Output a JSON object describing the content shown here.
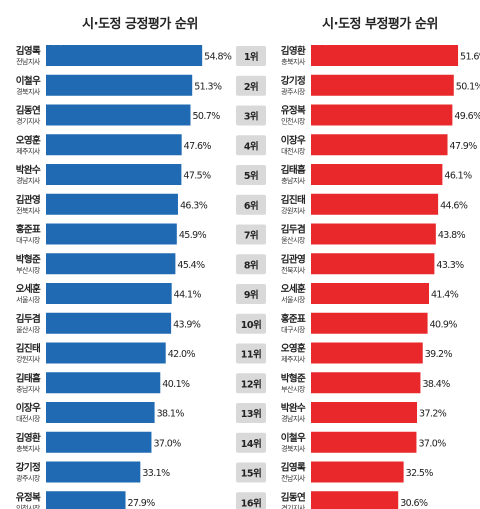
{
  "chart_data": [
    {
      "type": "bar",
      "title": "시·도정 긍정평가 순위",
      "series_label": "긍정",
      "color": "#1f6ab3",
      "items": [
        {
          "name": "김영록",
          "role": "전남지사",
          "value": 54.8,
          "label": "54.8%"
        },
        {
          "name": "이철우",
          "role": "경북지사",
          "value": 51.3,
          "label": "51.3%"
        },
        {
          "name": "김동연",
          "role": "경기지사",
          "value": 50.7,
          "label": "50.7%"
        },
        {
          "name": "오영훈",
          "role": "제주지사",
          "value": 47.6,
          "label": "47.6%"
        },
        {
          "name": "박완수",
          "role": "경남지사",
          "value": 47.5,
          "label": "47.5%"
        },
        {
          "name": "김관영",
          "role": "전북지사",
          "value": 46.3,
          "label": "46.3%"
        },
        {
          "name": "홍준표",
          "role": "대구시장",
          "value": 45.9,
          "label": "45.9%"
        },
        {
          "name": "박형준",
          "role": "부산시장",
          "value": 45.4,
          "label": "45.4%"
        },
        {
          "name": "오세훈",
          "role": "서울시장",
          "value": 44.1,
          "label": "44.1%"
        },
        {
          "name": "김두겸",
          "role": "울산시장",
          "value": 43.9,
          "label": "43.9%"
        },
        {
          "name": "김진태",
          "role": "강원지사",
          "value": 42.0,
          "label": "42.0%"
        },
        {
          "name": "김태흠",
          "role": "충남지사",
          "value": 40.1,
          "label": "40.1%"
        },
        {
          "name": "이장우",
          "role": "대전시장",
          "value": 38.1,
          "label": "38.1%"
        },
        {
          "name": "김영환",
          "role": "충북지사",
          "value": 37.0,
          "label": "37.0%"
        },
        {
          "name": "강기정",
          "role": "광주시장",
          "value": 33.1,
          "label": "33.1%"
        },
        {
          "name": "유정복",
          "role": "인천시장",
          "value": 27.9,
          "label": "27.9%"
        }
      ]
    },
    {
      "type": "bar",
      "title": "시·도정 부정평가 순위",
      "series_label": "부정",
      "color": "#e8282b",
      "items": [
        {
          "name": "김영환",
          "role": "충북지사",
          "value": 51.6,
          "label": "51.6%"
        },
        {
          "name": "강기정",
          "role": "광주시장",
          "value": 50.1,
          "label": "50.1%"
        },
        {
          "name": "유정복",
          "role": "인천시장",
          "value": 49.6,
          "label": "49.6%"
        },
        {
          "name": "이장우",
          "role": "대전시장",
          "value": 47.9,
          "label": "47.9%"
        },
        {
          "name": "김태흠",
          "role": "충남지사",
          "value": 46.1,
          "label": "46.1%"
        },
        {
          "name": "김진태",
          "role": "강원지사",
          "value": 44.6,
          "label": "44.6%"
        },
        {
          "name": "김두겸",
          "role": "울산시장",
          "value": 43.8,
          "label": "43.8%"
        },
        {
          "name": "김관영",
          "role": "전북지사",
          "value": 43.3,
          "label": "43.3%"
        },
        {
          "name": "오세훈",
          "role": "서울시장",
          "value": 41.4,
          "label": "41.4%"
        },
        {
          "name": "홍준표",
          "role": "대구시장",
          "value": 40.9,
          "label": "40.9%"
        },
        {
          "name": "오영훈",
          "role": "제주지사",
          "value": 39.2,
          "label": "39.2%"
        },
        {
          "name": "박형준",
          "role": "부산시장",
          "value": 38.4,
          "label": "38.4%"
        },
        {
          "name": "박완수",
          "role": "경남지사",
          "value": 37.2,
          "label": "37.2%"
        },
        {
          "name": "이철우",
          "role": "경북지사",
          "value": 37.0,
          "label": "37.0%"
        },
        {
          "name": "김영록",
          "role": "전남지사",
          "value": 32.5,
          "label": "32.5%"
        },
        {
          "name": "김동연",
          "role": "경기지사",
          "value": 30.6,
          "label": "30.6%"
        }
      ]
    }
  ],
  "ranks": [
    "1위",
    "2위",
    "3위",
    "4위",
    "5위",
    "6위",
    "7위",
    "8위",
    "9위",
    "10위",
    "11위",
    "12위",
    "13위",
    "14위",
    "15위",
    "16위"
  ],
  "rank_box_color": "#d9d9d9"
}
